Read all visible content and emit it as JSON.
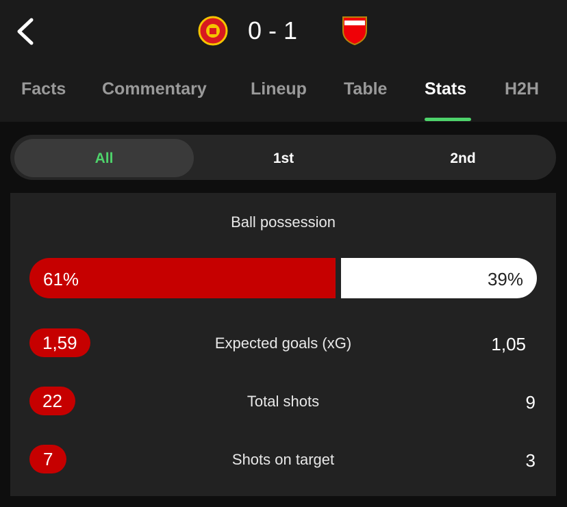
{
  "header": {
    "score": "0 - 1"
  },
  "tabs": [
    "Facts",
    "Commentary",
    "Lineup",
    "Table",
    "Stats",
    "H2H"
  ],
  "periods": [
    "All",
    "1st",
    "2nd"
  ],
  "stats": {
    "possession": {
      "title": "Ball possession",
      "home": {
        "value": 61,
        "label": "61%"
      },
      "away": {
        "value": 39,
        "label": "39%"
      }
    },
    "rows": [
      {
        "label": "Expected goals (xG)",
        "home": "1,59",
        "away": "1,05"
      },
      {
        "label": "Total shots",
        "home": "22",
        "away": "9"
      },
      {
        "label": "Shots on target",
        "home": "7",
        "away": "3"
      }
    ]
  }
}
